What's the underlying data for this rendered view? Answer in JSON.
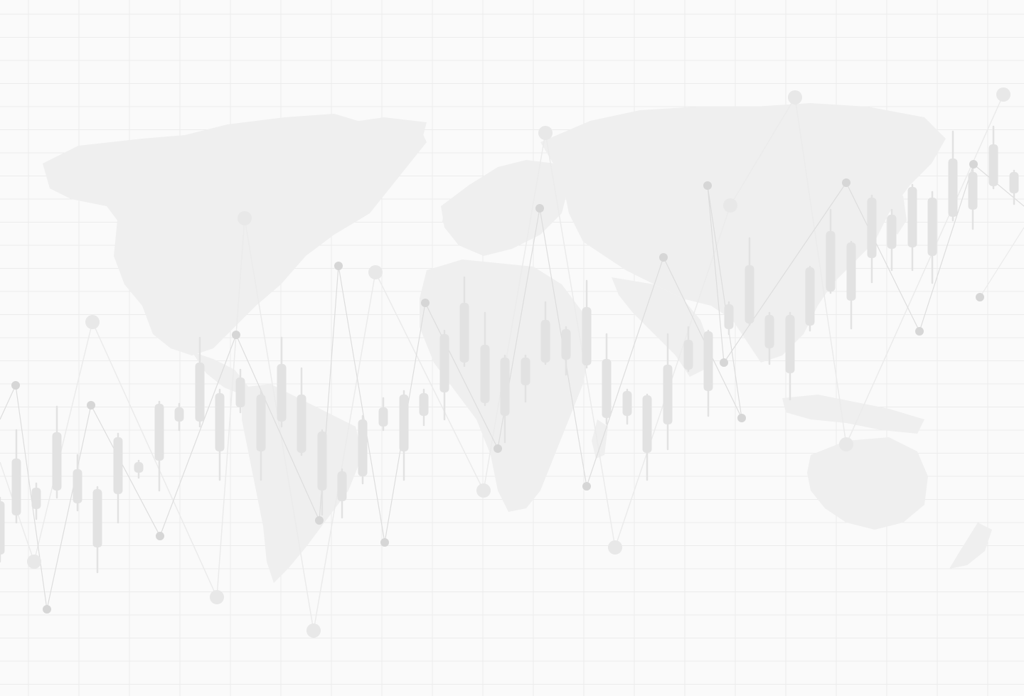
{
  "background": {
    "description_free": true,
    "colors": {
      "page": "#fafafa",
      "grid": "#ececec",
      "map": "#efefef",
      "candle": "#e2e2e2",
      "line_dark": "#dddddd",
      "line_light": "#ebebeb",
      "dot_dark": "#d6d6d6",
      "dot_light": "#e8e8e8"
    },
    "grid": {
      "visible": true
    },
    "map": {
      "icon": "world-map-icon"
    }
  }
}
